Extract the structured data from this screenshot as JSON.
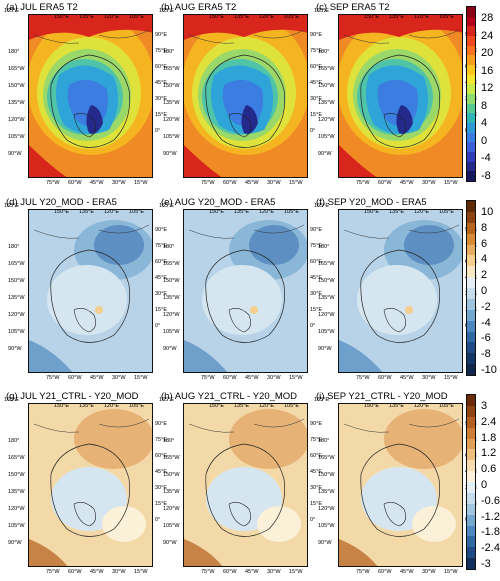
{
  "rows": [
    {
      "key": "abs",
      "panels": [
        {
          "title": "(a) JUL ERA5 T2"
        },
        {
          "title": "(b) AUG ERA5 T2"
        },
        {
          "title": "(c) SEP ERA5 T2"
        }
      ],
      "colorbar": {
        "labels": [
          "28",
          "24",
          "20",
          "16",
          "12",
          "8",
          "4",
          "0",
          "-4",
          "-8"
        ],
        "colors": [
          "#8c0015",
          "#b40018",
          "#d8261c",
          "#ef4a1f",
          "#f7711f",
          "#fb9e1e",
          "#fbc81e",
          "#f2e630",
          "#c7ec4a",
          "#8fdc6e",
          "#57c995",
          "#2fb7b8",
          "#2f9bd6",
          "#3b7de0",
          "#3a5fd8",
          "#2f3eb8",
          "#232a8c",
          "#16165a"
        ]
      }
    },
    {
      "key": "diff1",
      "panels": [
        {
          "title": "(d) JUL Y20_MOD - ERA5"
        },
        {
          "title": "(e) AUG Y20_MOD - ERA5"
        },
        {
          "title": "(f) SEP Y20_MOD - ERA5"
        }
      ],
      "colorbar": {
        "labels": [
          "10",
          "8",
          "6",
          "4",
          "2",
          "0",
          "-2",
          "-4",
          "-6",
          "-8",
          "-10"
        ],
        "colors": [
          "#5f2a06",
          "#8a4310",
          "#b5651d",
          "#d58a36",
          "#e9ad5f",
          "#f4cf8e",
          "#f9e7c2",
          "#e6eef4",
          "#c5dceb",
          "#9dc4df",
          "#70a7cf",
          "#4b88bd",
          "#2f68a3",
          "#1f4c84",
          "#163766",
          "#10264a"
        ]
      }
    },
    {
      "key": "diff2",
      "panels": [
        {
          "title": "(g) JUL Y21_CTRL - Y20_MOD"
        },
        {
          "title": "(h) AUG Y21_CTRL - Y20_MOD"
        },
        {
          "title": "(i) SEP Y21_CTRL - Y20_MOD"
        }
      ],
      "colorbar": {
        "labels": [
          "3",
          "2.4",
          "1.8",
          "1.2",
          "0.6",
          "0",
          "-0.6",
          "-1.2",
          "-1.8",
          "-2.4",
          "-3"
        ],
        "colors": [
          "#6a2c08",
          "#8e4312",
          "#b25f1f",
          "#cd7e34",
          "#e09f55",
          "#eebf7f",
          "#f6dcaf",
          "#fbf0d8",
          "#e4eef5",
          "#c6dcea",
          "#a0c5df",
          "#74a8d0",
          "#4d89be",
          "#3069a4",
          "#1e4b83",
          "#112f5d"
        ]
      }
    }
  ],
  "axis_labels": {
    "left": [
      "165°E",
      "180°",
      "165°W",
      "150°W",
      "135°W",
      "120°W",
      "105°W",
      "90°W"
    ],
    "top": [
      "150°E",
      "135°E",
      "120°E",
      "105°E"
    ],
    "right": [
      "90°E",
      "75°E",
      "60°E",
      "45°E",
      "30°E",
      "15°E",
      "0°"
    ],
    "bottom": [
      "75°W",
      "60°W",
      "45°W",
      "30°W",
      "15°W"
    ]
  }
}
